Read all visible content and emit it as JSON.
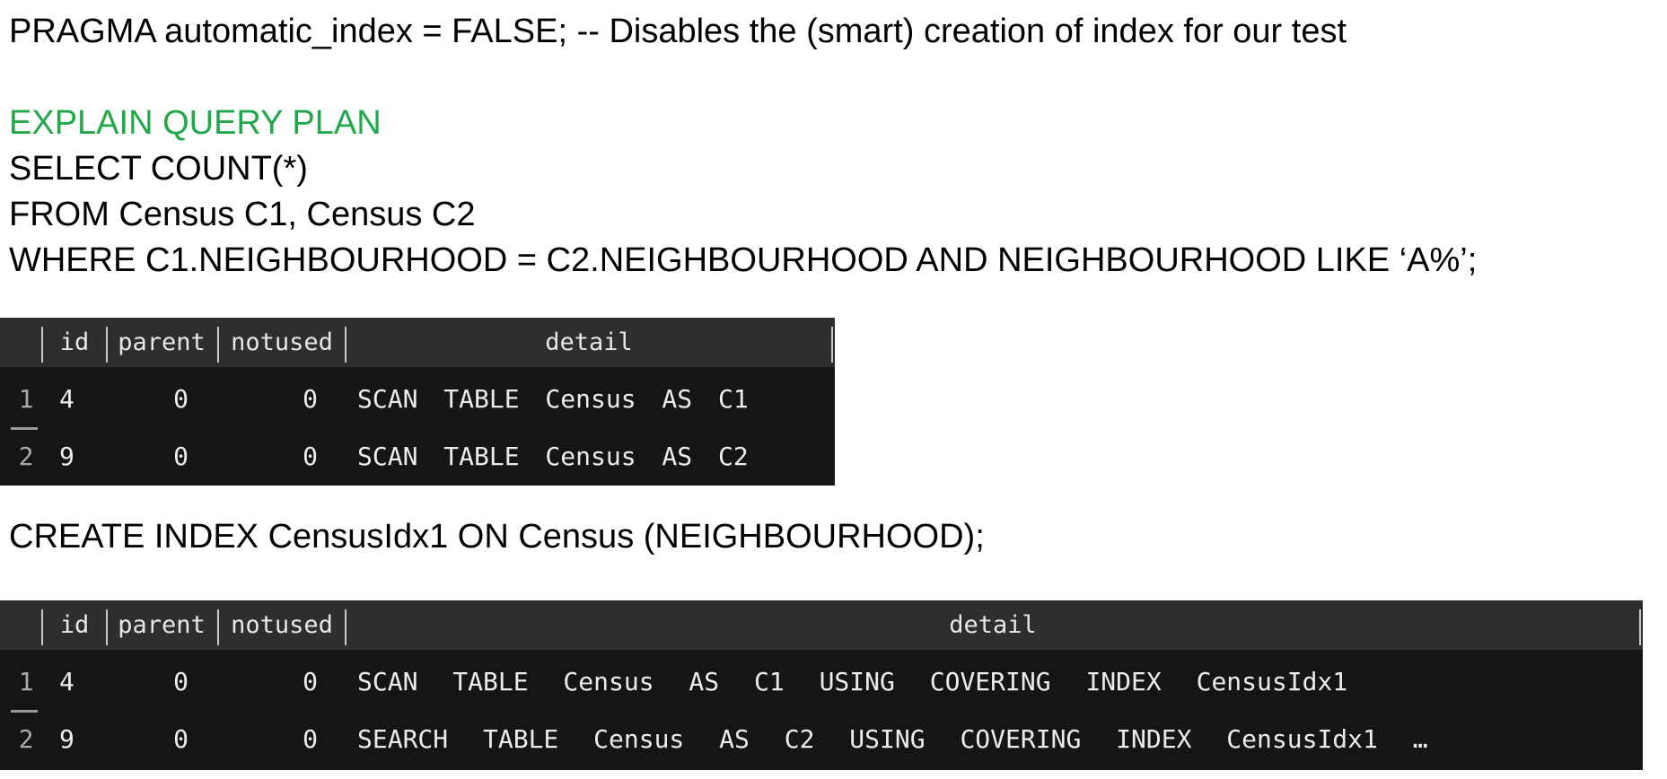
{
  "sql": {
    "pragma": "PRAGMA automatic_index = FALSE; -- Disables the (smart) creation of index for our test",
    "explain": "EXPLAIN QUERY PLAN",
    "select": "SELECT COUNT(*)",
    "from": "FROM Census C1, Census C2",
    "where": "WHERE C1.NEIGHBOURHOOD = C2.NEIGHBOURHOOD AND NEIGHBOURHOOD LIKE ‘A%’;",
    "create_index": "CREATE INDEX CensusIdx1 ON Census (NEIGHBOURHOOD);"
  },
  "plan1": {
    "columns": [
      "id",
      "parent",
      "notused",
      "detail"
    ],
    "rows": [
      {
        "n": "1",
        "id": "4",
        "parent": "0",
        "notused": "0",
        "detail": "SCAN TABLE Census AS C1"
      },
      {
        "n": "2",
        "id": "9",
        "parent": "0",
        "notused": "0",
        "detail": "SCAN TABLE Census AS C2"
      }
    ]
  },
  "plan2": {
    "columns": [
      "id",
      "parent",
      "notused",
      "detail"
    ],
    "rows": [
      {
        "n": "1",
        "id": "4",
        "parent": "0",
        "notused": "0",
        "detail": "SCAN TABLE Census AS C1 USING COVERING INDEX CensusIdx1"
      },
      {
        "n": "2",
        "id": "9",
        "parent": "0",
        "notused": "0",
        "detail": "SEARCH TABLE Census AS C2 USING COVERING INDEX CensusIdx1 …"
      }
    ]
  }
}
